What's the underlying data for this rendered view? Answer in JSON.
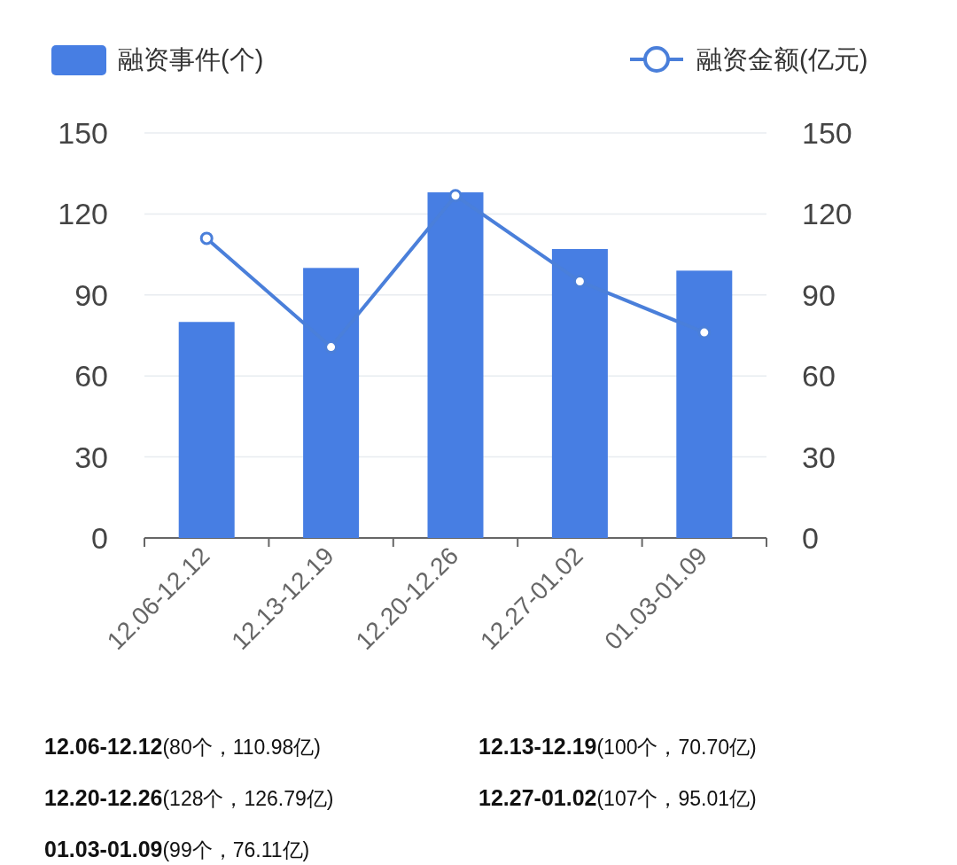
{
  "chart_data": {
    "type": "bar",
    "categories": [
      "12.06-12.12",
      "12.13-12.19",
      "12.20-12.26",
      "12.27-01.02",
      "01.03-01.09"
    ],
    "series": [
      {
        "name": "融资事件(个)",
        "color": "#477ee3",
        "values": [
          80,
          100,
          128,
          107,
          99
        ]
      },
      {
        "name": "融资金额(亿元)",
        "type": "line",
        "axis": "y2",
        "color": "#4a7fda",
        "marker": "circle",
        "values": [
          110.98,
          70.7,
          126.79,
          95.01,
          76.11
        ]
      }
    ],
    "annotations": [
      "(80个，110.98亿)",
      "(100个，70.70亿)",
      "(128个，126.79亿)",
      "(107个，95.01亿)",
      "(99个，76.11亿)"
    ],
    "ylim": [
      0,
      150
    ],
    "yticks": [
      0,
      30,
      60,
      90,
      120,
      150
    ],
    "y2lim": [
      0,
      150
    ],
    "y2ticks": [
      0,
      30,
      60,
      90,
      120,
      150
    ],
    "grid": "y",
    "legend": "top"
  }
}
